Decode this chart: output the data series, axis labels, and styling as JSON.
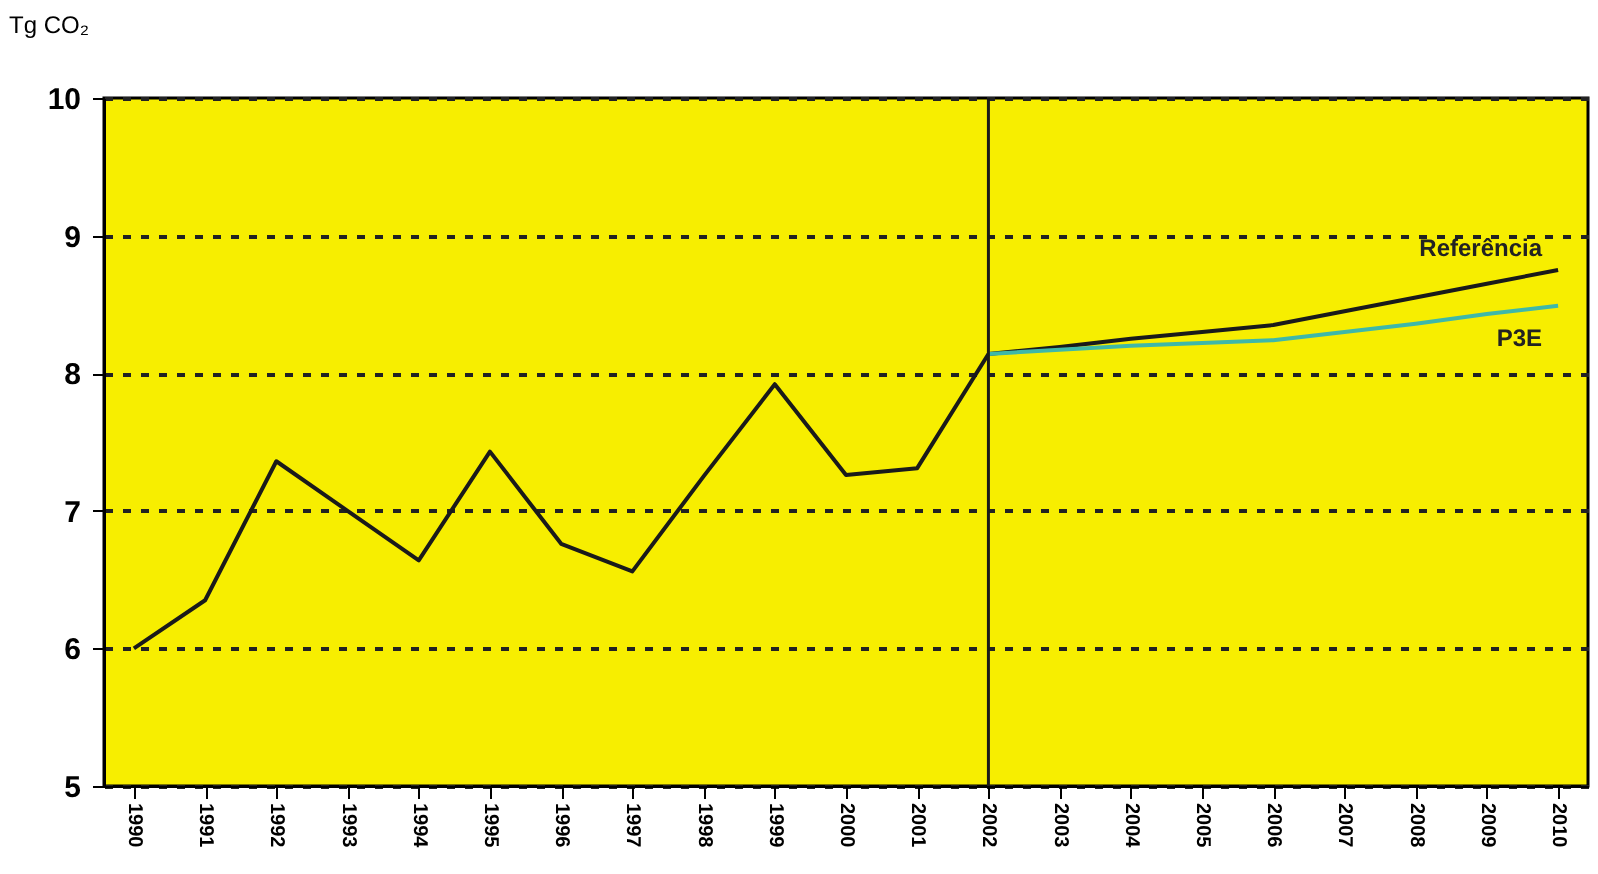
{
  "chart_data": {
    "type": "line",
    "ylabel": "Tg CO₂",
    "categories": [
      "1990",
      "1991",
      "1992",
      "1993",
      "1994",
      "1995",
      "1996",
      "1997",
      "1998",
      "1999",
      "2000",
      "2001",
      "2002",
      "2003",
      "2004",
      "2005",
      "2006",
      "2007",
      "2008",
      "2009",
      "2010"
    ],
    "series": [
      {
        "color": "#1a1a1a",
        "values": [
          6.0,
          6.35,
          7.36,
          7.0,
          6.64,
          7.43,
          6.76,
          6.56,
          7.25,
          7.92,
          7.26,
          7.31,
          8.14,
          null,
          null,
          null,
          null,
          null,
          null,
          null,
          null
        ]
      },
      {
        "name": "Referência",
        "color": "#1a1a1a",
        "values": [
          null,
          null,
          null,
          null,
          null,
          null,
          null,
          null,
          null,
          null,
          null,
          null,
          8.14,
          8.19,
          8.25,
          8.3,
          8.35,
          8.45,
          8.55,
          8.65,
          8.75
        ]
      },
      {
        "name": "P3E",
        "color": "#3fb8a8",
        "values": [
          null,
          null,
          null,
          null,
          null,
          null,
          null,
          null,
          null,
          null,
          null,
          null,
          8.14,
          8.17,
          8.2,
          8.22,
          8.24,
          8.3,
          8.36,
          8.43,
          8.49
        ]
      }
    ],
    "ylim": [
      5,
      10
    ],
    "yticks": [
      5,
      6,
      7,
      8,
      9,
      10
    ],
    "grid": "y",
    "ref_lines": [
      {
        "axis": "x",
        "value": "2002",
        "color": "#1a1a1a"
      }
    ]
  }
}
